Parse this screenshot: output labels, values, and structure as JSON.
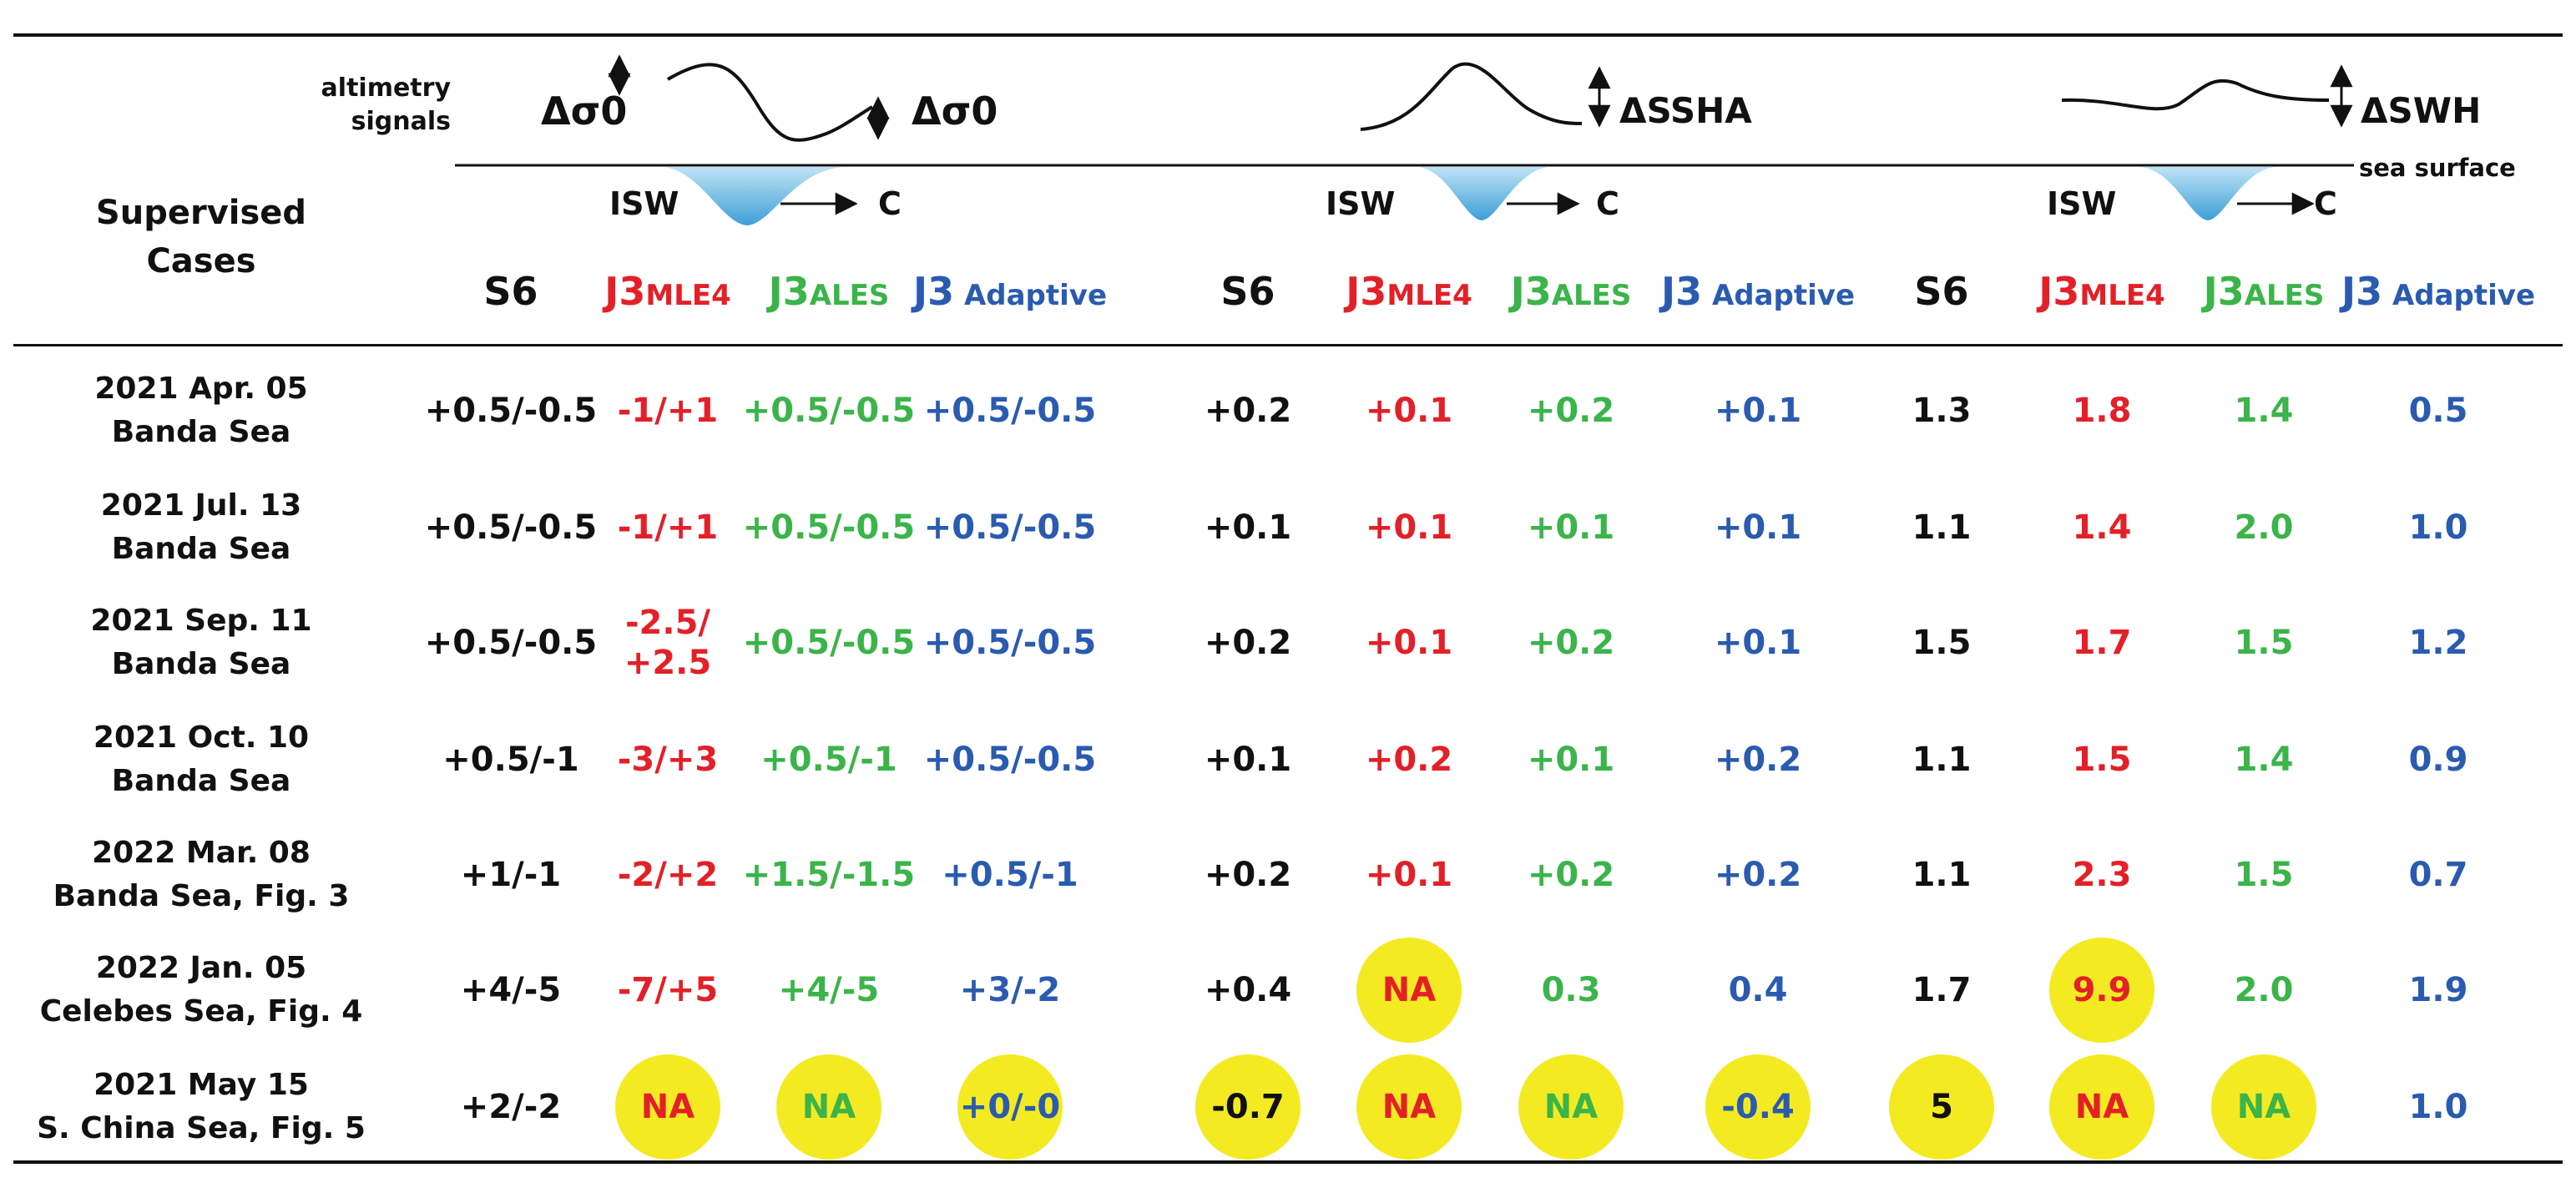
{
  "header": {
    "row_header_line1": "Supervised",
    "row_header_line2": "Cases",
    "altimetry_line1": "altimetry",
    "altimetry_line2": "signals",
    "sea_surface": "sea surface",
    "isw_label": "ISW",
    "c_label": "C",
    "groups": [
      {
        "signal_label_left": "Δσ0",
        "signal_label_right": "Δσ0"
      },
      {
        "signal_label": "ΔSSHA"
      },
      {
        "signal_label": "ΔSWH"
      }
    ],
    "columns": [
      {
        "main": "S6",
        "sub": ""
      },
      {
        "main": "J3",
        "sub": "MLE4"
      },
      {
        "main": "J3",
        "sub": "ALES"
      },
      {
        "main": "J3",
        "sub": " Adaptive"
      }
    ]
  },
  "colors": {
    "S6": "#111111",
    "MLE4": "#e32028",
    "ALES": "#3bb44a",
    "Adaptive": "#2a5bb0",
    "highlight": "#f4ea22"
  },
  "rows": [
    {
      "date": "2021 Apr. 05",
      "place": "Banda Sea",
      "values": [
        "+0.5/-0.5",
        "-1/+1",
        "+0.5/-0.5",
        "+0.5/-0.5",
        "+0.2",
        "+0.1",
        "+0.2",
        "+0.1",
        "1.3",
        "1.8",
        "1.4",
        "0.5"
      ]
    },
    {
      "date": "2021 Jul. 13",
      "place": "Banda Sea",
      "values": [
        "+0.5/-0.5",
        "-1/+1",
        "+0.5/-0.5",
        "+0.5/-0.5",
        "+0.1",
        "+0.1",
        "+0.1",
        "+0.1",
        "1.1",
        "1.4",
        "2.0",
        "1.0"
      ]
    },
    {
      "date": "2021 Sep. 11",
      "place": "Banda Sea",
      "values": [
        "+0.5/-0.5",
        "-2.5/\n+2.5",
        "+0.5/-0.5",
        "+0.5/-0.5",
        "+0.2",
        "+0.1",
        "+0.2",
        "+0.1",
        "1.5",
        "1.7",
        "1.5",
        "1.2"
      ]
    },
    {
      "date": "2021 Oct. 10",
      "place": "Banda Sea",
      "values": [
        "+0.5/-1",
        "-3/+3",
        "+0.5/-1",
        "+0.5/-0.5",
        "+0.1",
        "+0.2",
        "+0.1",
        "+0.2",
        "1.1",
        "1.5",
        "1.4",
        "0.9"
      ]
    },
    {
      "date": "2022 Mar. 08",
      "place": "Banda Sea, Fig. 3",
      "values": [
        "+1/-1",
        "-2/+2",
        "+1.5/-1.5",
        "+0.5/-1",
        "+0.2",
        "+0.1",
        "+0.2",
        "+0.2",
        "1.1",
        "2.3",
        "1.5",
        "0.7"
      ]
    },
    {
      "date": "2022 Jan. 05",
      "place": "Celebes Sea, Fig. 4",
      "values": [
        "+4/-5",
        "-7/+5",
        "+4/-5",
        "+3/-2",
        "+0.4",
        "NA",
        "0.3",
        "0.4",
        "1.7",
        "9.9",
        "2.0",
        "1.9"
      ]
    },
    {
      "date": "2021 May 15",
      "place": "S. China Sea, Fig. 5",
      "values": [
        "+2/-2",
        "NA",
        "NA",
        "+0/-0",
        "-0.7",
        "NA",
        "NA",
        "-0.4",
        "5",
        "NA",
        "NA",
        "1.0"
      ]
    }
  ],
  "highlighted": [
    [
      5,
      5
    ],
    [
      5,
      9
    ],
    [
      6,
      1
    ],
    [
      6,
      2
    ],
    [
      6,
      3
    ],
    [
      6,
      4
    ],
    [
      6,
      5
    ],
    [
      6,
      6
    ],
    [
      6,
      7
    ],
    [
      6,
      8
    ],
    [
      6,
      9
    ],
    [
      6,
      10
    ]
  ]
}
